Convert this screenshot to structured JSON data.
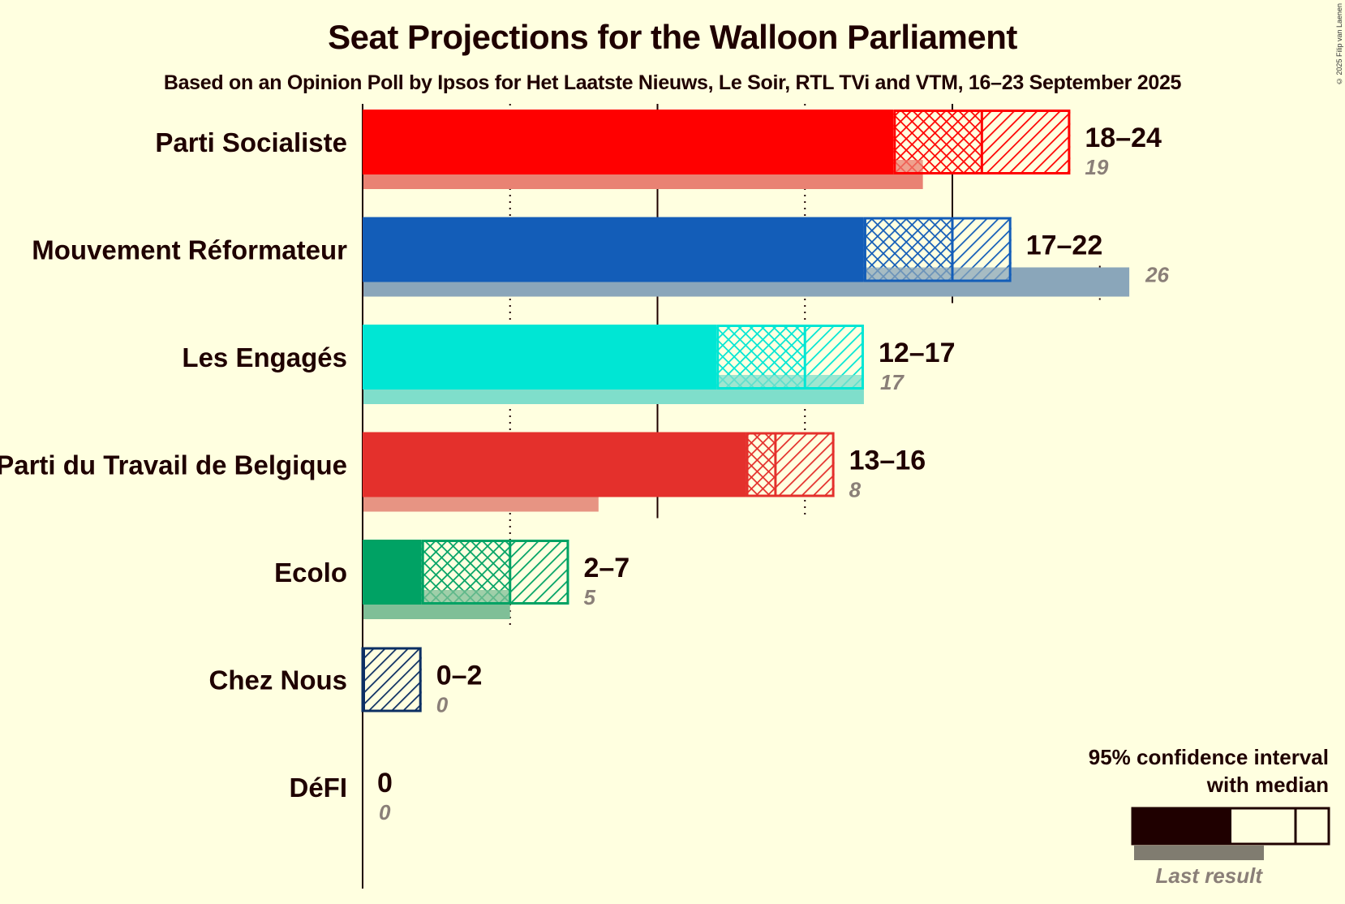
{
  "chart_data": {
    "type": "bar",
    "orientation": "horizontal",
    "title": "Seat Projections for the Walloon Parliament",
    "subtitle": "Based on an Opinion Poll by Ipsos for Het Laatste Nieuws, Le Soir, RTL TVi and VTM, 16–23 September 2025",
    "copyright": "© 2025 Filip van Laenen",
    "xlim": [
      0,
      27
    ],
    "gridlines": {
      "solid": [
        0,
        10,
        20
      ],
      "dotted": [
        5,
        15,
        25
      ]
    },
    "parties": [
      {
        "name": "Parti Socialiste",
        "low": 18,
        "median": 21,
        "high": 24,
        "last": 19,
        "range_label": "18–24",
        "last_label": "19",
        "color": "#ff0000",
        "last_color": "#e98273"
      },
      {
        "name": "Mouvement Réformateur",
        "low": 17,
        "median": 20,
        "high": 22,
        "last": 26,
        "range_label": "17–22",
        "last_label": "26",
        "color": "#135db8",
        "last_color": "#8aa6ba"
      },
      {
        "name": "Les Engagés",
        "low": 12,
        "median": 15,
        "high": 17,
        "last": 17,
        "range_label": "12–17",
        "last_label": "17",
        "color": "#00e6d4",
        "last_color": "#7fdecb"
      },
      {
        "name": "Parti du Travail de Belgique",
        "low": 13,
        "median": 14,
        "high": 16,
        "last": 8,
        "range_label": "13–16",
        "last_label": "8",
        "color": "#e4302c",
        "last_color": "#e79483"
      },
      {
        "name": "Ecolo",
        "low": 2,
        "median": 5,
        "high": 7,
        "last": 5,
        "range_label": "2–7",
        "last_label": "5",
        "color": "#00a264",
        "last_color": "#7fbf97"
      },
      {
        "name": "Chez Nous",
        "low": 0,
        "median": 0,
        "high": 2,
        "last": 0,
        "range_label": "0–2",
        "last_label": "0",
        "color": "#0c2f63",
        "last_color": "#8593a8"
      },
      {
        "name": "DéFI",
        "low": 0,
        "median": 0,
        "high": 0,
        "last": 0,
        "range_label": "0",
        "last_label": "0",
        "color": "#dd1872",
        "last_color": "#e98bb5"
      }
    ],
    "legend": {
      "line1": "95% confidence interval",
      "line2": "with median",
      "last_result": "Last result",
      "placement": "bottom-right",
      "color": "#1f0000",
      "last_color": "#807c70"
    }
  }
}
